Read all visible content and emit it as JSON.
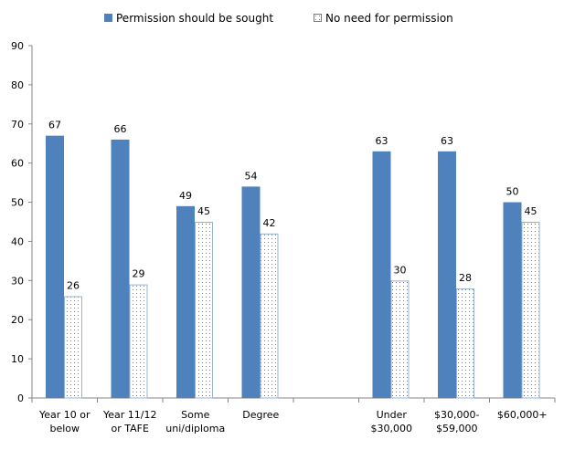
{
  "chart_data": {
    "type": "bar",
    "title": "",
    "xlabel": "",
    "ylabel": "",
    "ylim": [
      0,
      90
    ],
    "yticks": [
      0,
      10,
      20,
      30,
      40,
      50,
      60,
      70,
      80,
      90
    ],
    "grid": false,
    "legend_position": "top-center",
    "categories": [
      [
        "Year 10 or",
        "below"
      ],
      [
        "Year 11/12",
        "or TAFE"
      ],
      [
        "Some",
        "uni/diploma"
      ],
      [
        "Degree"
      ],
      [],
      [
        "Under",
        "$30,000"
      ],
      [
        "$30,000-",
        "$59,000"
      ],
      [
        "$60,000+"
      ]
    ],
    "series": [
      {
        "name": "Permission should be sought",
        "color": "#4F81BD",
        "pattern": "solid",
        "values": [
          67,
          66,
          49,
          54,
          null,
          63,
          63,
          50
        ]
      },
      {
        "name": "No need for permission",
        "color": "#4F81BD",
        "pattern": "dotted",
        "values": [
          26,
          29,
          45,
          42,
          null,
          30,
          28,
          45
        ]
      }
    ]
  }
}
